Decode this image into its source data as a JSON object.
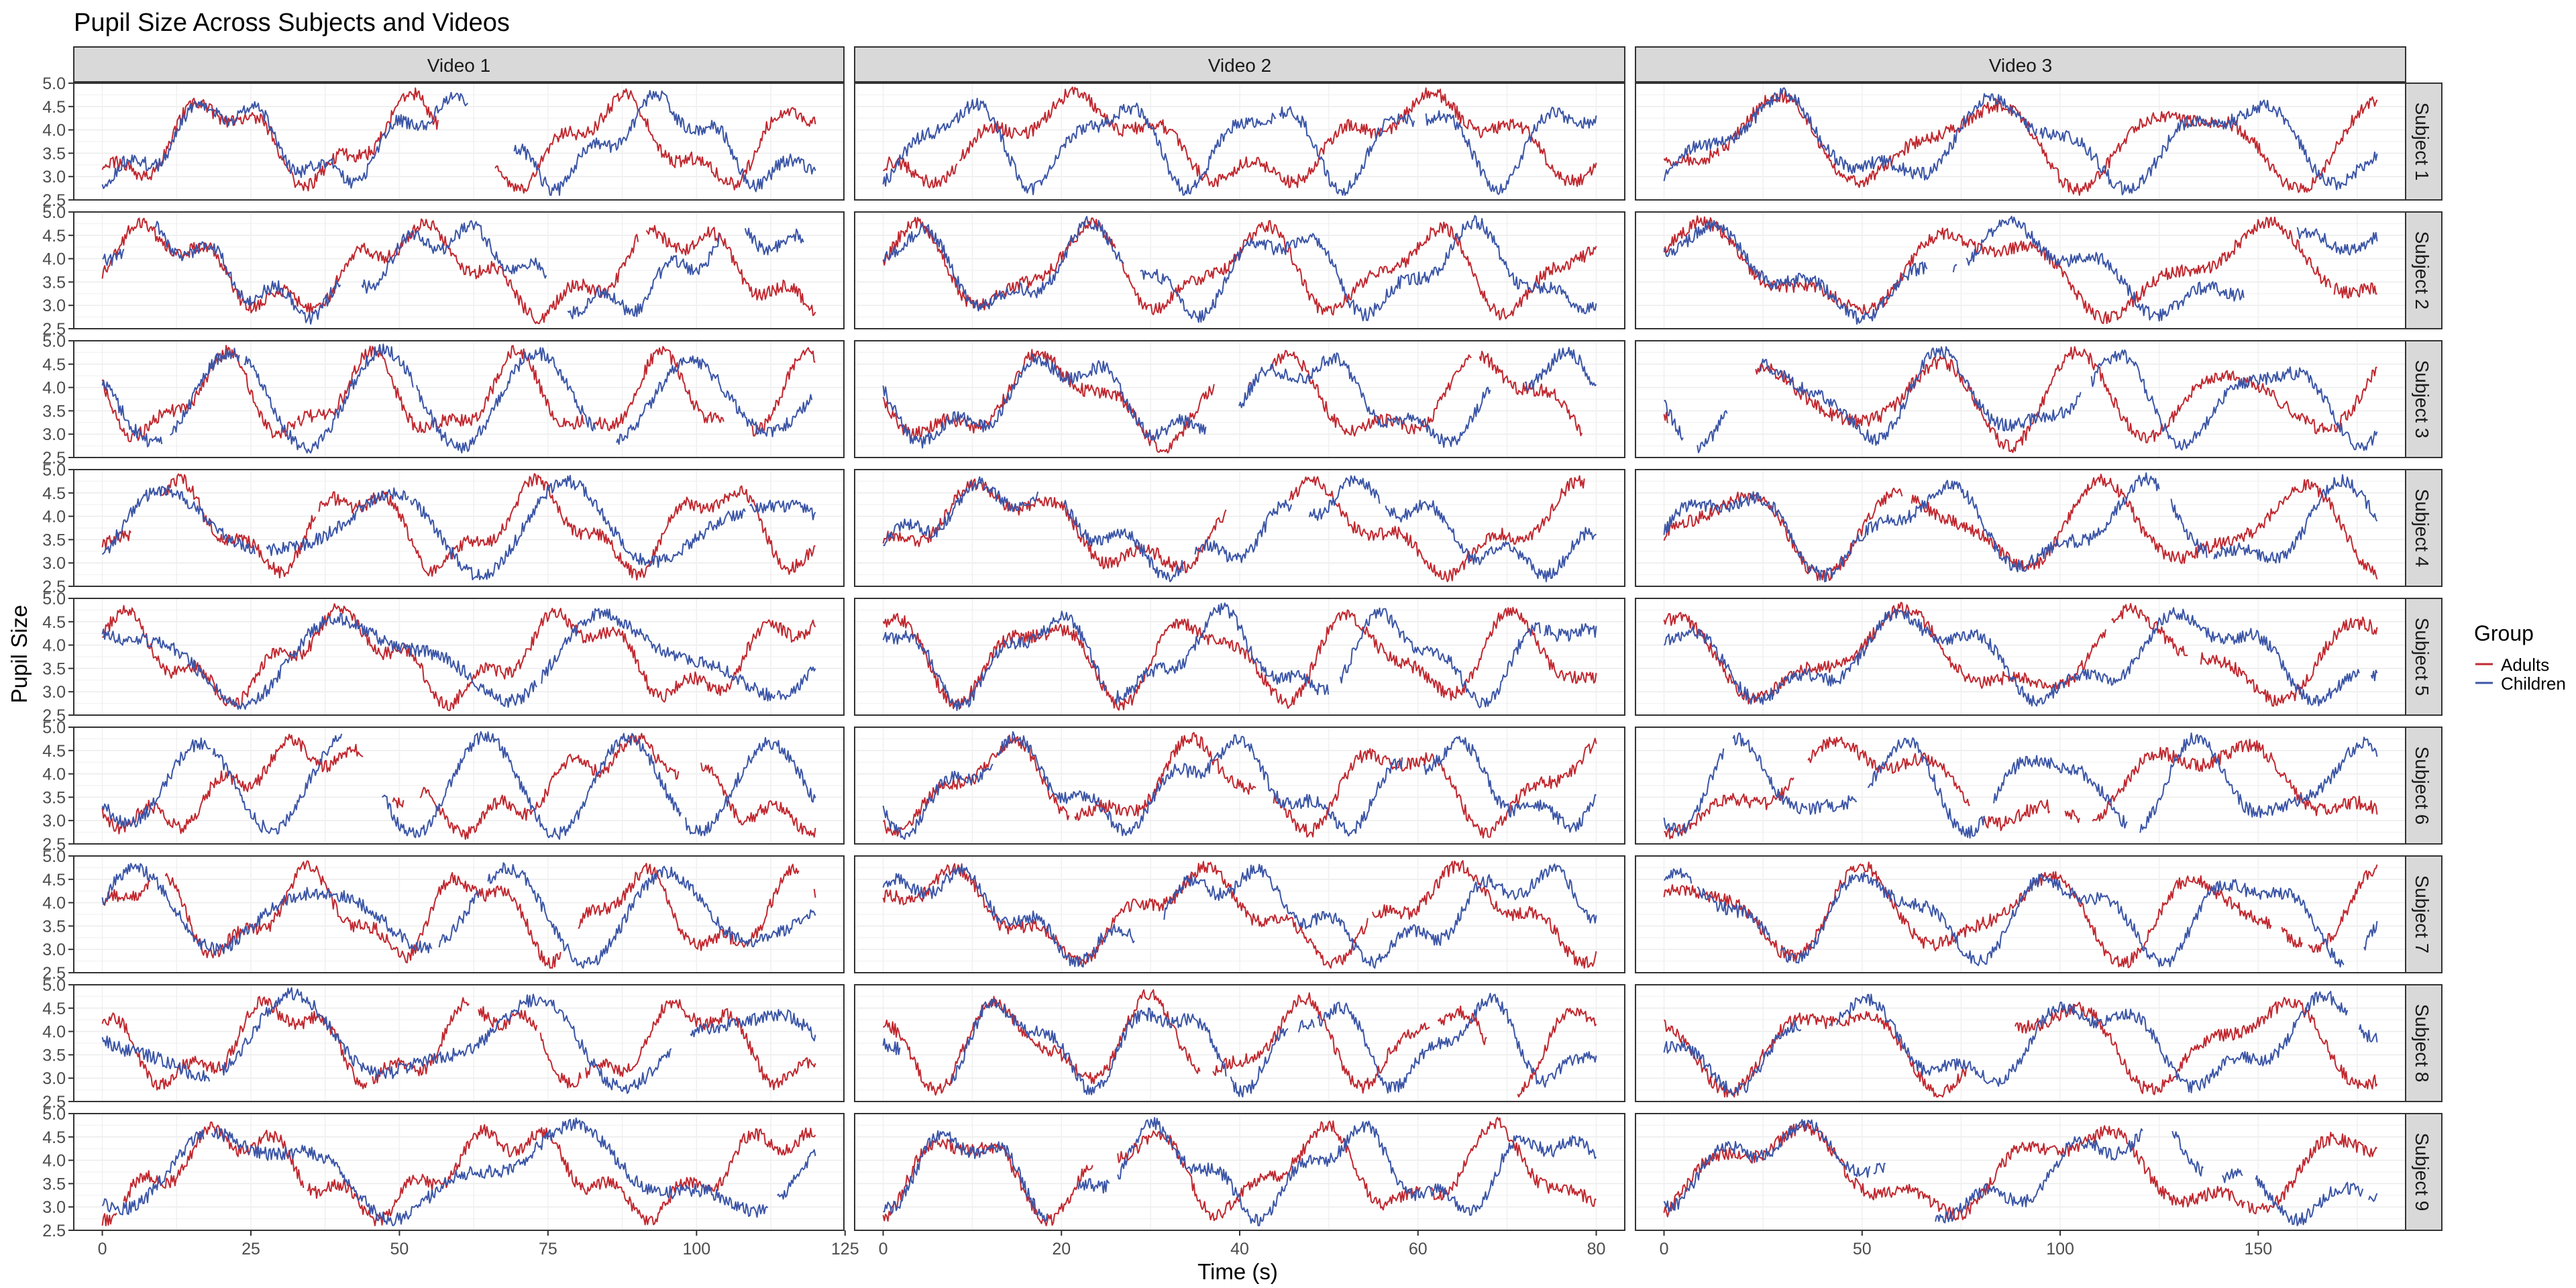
{
  "chart_data": {
    "type": "line",
    "title": "Pupil Size Across Subjects and Videos",
    "xlabel": "Time (s)",
    "ylabel": "Pupil Size",
    "ylim": [
      2.5,
      5.0
    ],
    "y_ticks": [
      "2.5",
      "3.0",
      "3.5",
      "4.0",
      "4.5",
      "5.0"
    ],
    "grid": true,
    "legend": {
      "title": "Group",
      "position": "right",
      "entries": [
        {
          "name": "Adults",
          "color": "#c0282f"
        },
        {
          "name": "Children",
          "color": "#3b55a6"
        }
      ]
    },
    "videos": [
      {
        "label": "Video 1",
        "xlim": [
          0,
          120
        ],
        "x_ticks": [
          "0",
          "25",
          "50",
          "75",
          "100",
          "125"
        ],
        "x_tick_values": [
          0,
          25,
          50,
          75,
          100,
          125
        ],
        "duration_s": 120
      },
      {
        "label": "Video 2",
        "xlim": [
          0,
          80
        ],
        "x_ticks": [
          "0",
          "20",
          "40",
          "60",
          "80"
        ],
        "x_tick_values": [
          0,
          20,
          40,
          60,
          80
        ],
        "duration_s": 80
      },
      {
        "label": "Video 3",
        "xlim": [
          0,
          180
        ],
        "x_ticks": [
          "0",
          "50",
          "100",
          "150"
        ],
        "x_tick_values": [
          0,
          50,
          100,
          150
        ],
        "duration_s": 180
      }
    ],
    "subjects": [
      "Subject 1",
      "Subject 2",
      "Subject 3",
      "Subject 4",
      "Subject 5",
      "Subject 6",
      "Subject 7",
      "Subject 8",
      "Subject 9"
    ],
    "series_note": "Each panel shows two noisy traces (Adults, Children) oscillating between about 2.5 and 5.0, with occasional gaps.",
    "series_range": {
      "min": 2.6,
      "max": 4.95
    }
  }
}
